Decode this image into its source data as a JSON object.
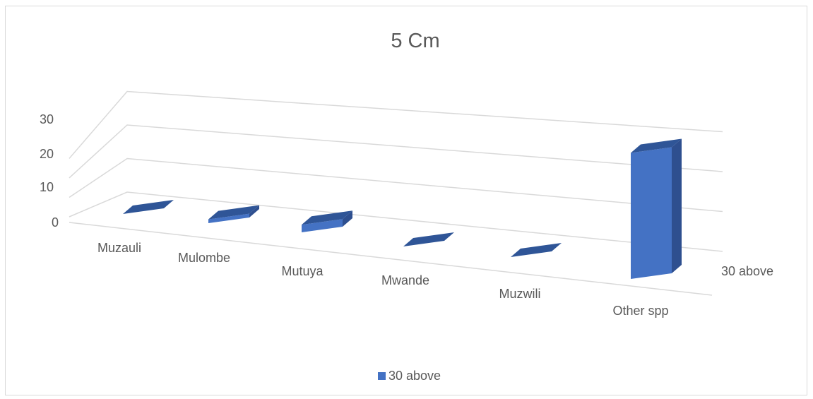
{
  "chart_data": {
    "type": "bar",
    "title": "5 Cm",
    "categories": [
      "Muzauli",
      "Mulombe",
      "Mutuya",
      "Mwande",
      "Muzwili",
      "Other spp"
    ],
    "series": [
      {
        "name": "30 above",
        "values": [
          0,
          0.5,
          1,
          0,
          0,
          20
        ]
      }
    ],
    "depth_axis_label": "30 above",
    "yticks": [
      0,
      10,
      20,
      30
    ],
    "ylim": [
      0,
      30
    ],
    "grid": true,
    "legend": "bottom",
    "colors": {
      "bar_front": "#4472c4",
      "bar_top": "#2f5597",
      "bar_side": "#2e4f8f",
      "grid": "#d9d9d9",
      "text": "#595959"
    }
  }
}
